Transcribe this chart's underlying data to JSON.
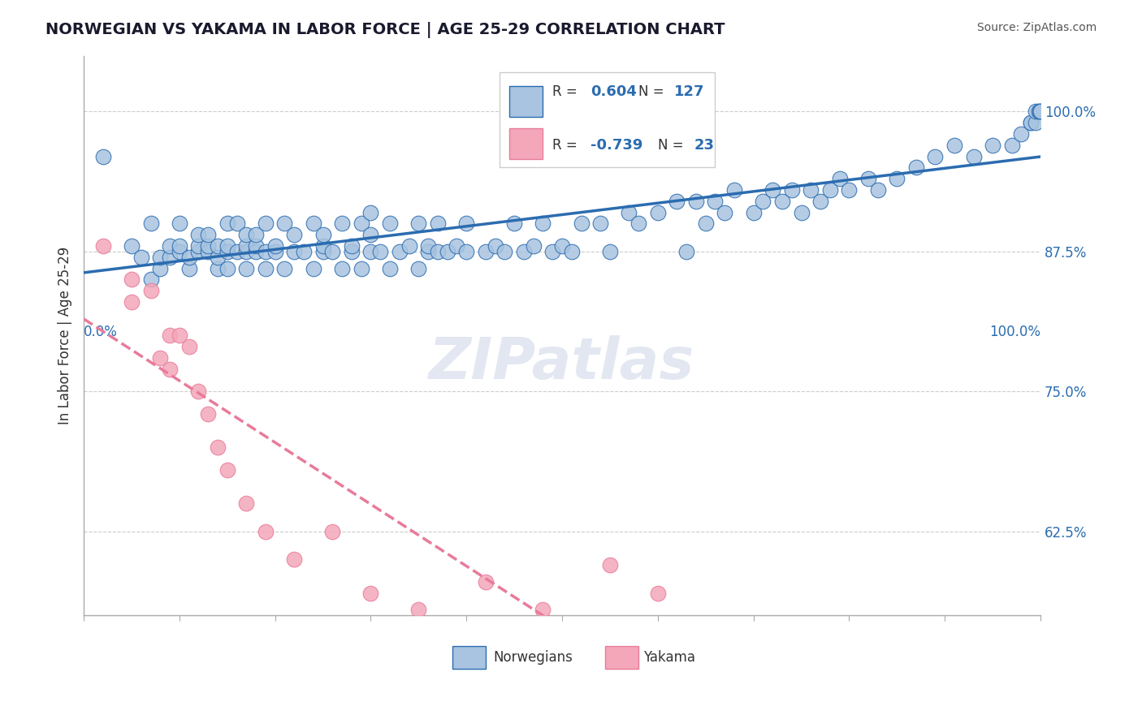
{
  "title": "NORWEGIAN VS YAKAMA IN LABOR FORCE | AGE 25-29 CORRELATION CHART",
  "source_text": "Source: ZipAtlas.com",
  "xlabel": "",
  "ylabel": "In Labor Force | Age 25-29",
  "xlim": [
    0.0,
    1.0
  ],
  "ylim": [
    0.55,
    1.05
  ],
  "ytick_labels": [
    "62.5%",
    "75.0%",
    "87.5%",
    "100.0%"
  ],
  "ytick_values": [
    0.625,
    0.75,
    0.875,
    1.0
  ],
  "xtick_labels": [
    "0.0%",
    "100.0%"
  ],
  "xtick_values": [
    0.0,
    1.0
  ],
  "legend_R_blue": "0.604",
  "legend_N_blue": "127",
  "legend_R_pink": "-0.739",
  "legend_N_pink": "23",
  "blue_color": "#a8c4e0",
  "blue_line_color": "#2b6cb0",
  "pink_color": "#f4a7b9",
  "pink_line_color": "#e87b9a",
  "background_color": "#ffffff",
  "grid_color": "#cccccc",
  "watermark_text": "ZIPatlas",
  "watermark_color": "#d0d8e8",
  "title_color": "#1a1a2e",
  "axis_label_color": "#2b6cb0",
  "legend_label_color": "#2b6cb0",
  "blue_scatter_x": [
    0.02,
    0.05,
    0.06,
    0.07,
    0.07,
    0.08,
    0.08,
    0.09,
    0.09,
    0.1,
    0.1,
    0.1,
    0.11,
    0.11,
    0.12,
    0.12,
    0.12,
    0.13,
    0.13,
    0.13,
    0.14,
    0.14,
    0.14,
    0.15,
    0.15,
    0.15,
    0.15,
    0.16,
    0.16,
    0.17,
    0.17,
    0.17,
    0.17,
    0.18,
    0.18,
    0.18,
    0.19,
    0.19,
    0.19,
    0.2,
    0.2,
    0.21,
    0.21,
    0.22,
    0.22,
    0.23,
    0.24,
    0.24,
    0.25,
    0.25,
    0.25,
    0.26,
    0.27,
    0.27,
    0.28,
    0.28,
    0.29,
    0.29,
    0.3,
    0.3,
    0.3,
    0.31,
    0.32,
    0.32,
    0.33,
    0.34,
    0.35,
    0.35,
    0.36,
    0.36,
    0.37,
    0.37,
    0.38,
    0.39,
    0.4,
    0.4,
    0.42,
    0.43,
    0.44,
    0.45,
    0.46,
    0.47,
    0.48,
    0.49,
    0.5,
    0.51,
    0.52,
    0.54,
    0.55,
    0.57,
    0.58,
    0.6,
    0.62,
    0.63,
    0.64,
    0.65,
    0.66,
    0.67,
    0.68,
    0.7,
    0.71,
    0.72,
    0.73,
    0.74,
    0.75,
    0.76,
    0.77,
    0.78,
    0.79,
    0.8,
    0.82,
    0.83,
    0.85,
    0.87,
    0.89,
    0.91,
    0.93,
    0.95,
    0.97,
    0.98,
    0.99,
    0.99,
    0.995,
    0.995,
    0.998,
    0.999,
    1.0
  ],
  "blue_scatter_y": [
    0.96,
    0.88,
    0.87,
    0.85,
    0.9,
    0.86,
    0.87,
    0.87,
    0.88,
    0.875,
    0.88,
    0.9,
    0.86,
    0.87,
    0.875,
    0.88,
    0.89,
    0.875,
    0.88,
    0.89,
    0.86,
    0.87,
    0.88,
    0.86,
    0.875,
    0.88,
    0.9,
    0.875,
    0.9,
    0.86,
    0.875,
    0.88,
    0.89,
    0.875,
    0.88,
    0.89,
    0.86,
    0.875,
    0.9,
    0.875,
    0.88,
    0.86,
    0.9,
    0.875,
    0.89,
    0.875,
    0.86,
    0.9,
    0.875,
    0.88,
    0.89,
    0.875,
    0.86,
    0.9,
    0.875,
    0.88,
    0.86,
    0.9,
    0.875,
    0.89,
    0.91,
    0.875,
    0.86,
    0.9,
    0.875,
    0.88,
    0.86,
    0.9,
    0.875,
    0.88,
    0.875,
    0.9,
    0.875,
    0.88,
    0.875,
    0.9,
    0.875,
    0.88,
    0.875,
    0.9,
    0.875,
    0.88,
    0.9,
    0.875,
    0.88,
    0.875,
    0.9,
    0.9,
    0.875,
    0.91,
    0.9,
    0.91,
    0.92,
    0.875,
    0.92,
    0.9,
    0.92,
    0.91,
    0.93,
    0.91,
    0.92,
    0.93,
    0.92,
    0.93,
    0.91,
    0.93,
    0.92,
    0.93,
    0.94,
    0.93,
    0.94,
    0.93,
    0.94,
    0.95,
    0.96,
    0.97,
    0.96,
    0.97,
    0.97,
    0.98,
    0.99,
    0.99,
    0.99,
    1.0,
    1.0,
    1.0,
    1.0
  ],
  "pink_scatter_x": [
    0.02,
    0.05,
    0.05,
    0.07,
    0.08,
    0.09,
    0.09,
    0.1,
    0.11,
    0.12,
    0.13,
    0.14,
    0.15,
    0.17,
    0.19,
    0.22,
    0.26,
    0.3,
    0.35,
    0.42,
    0.48,
    0.55,
    0.6
  ],
  "pink_scatter_y": [
    0.88,
    0.85,
    0.83,
    0.84,
    0.78,
    0.77,
    0.8,
    0.8,
    0.79,
    0.75,
    0.73,
    0.7,
    0.68,
    0.65,
    0.625,
    0.6,
    0.625,
    0.57,
    0.555,
    0.58,
    0.555,
    0.595,
    0.57
  ]
}
